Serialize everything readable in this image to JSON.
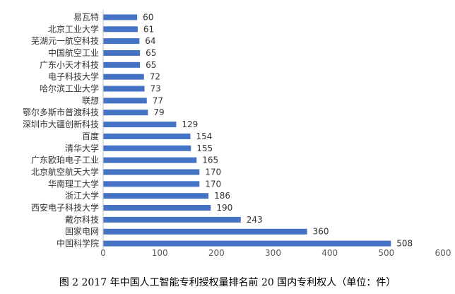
{
  "caption": "图 2 2017 年中国人工智能专利授权量排名前 20 国内专利权人（单位：件）",
  "chart_data": {
    "type": "bar",
    "orientation": "horizontal",
    "categories": [
      "易瓦特",
      "北京工业大学",
      "芜湖元一航空科技",
      "中国航空工业",
      "广东小天才科技",
      "电子科技大学",
      "哈尔滨工业大学",
      "联想",
      "鄂尔多斯市普渡科技",
      "深圳市大疆创新科技",
      "百度",
      "清华大学",
      "广东欧珀电子工业",
      "北京航空航天大学",
      "华南理工大学",
      "浙江大学",
      "西安电子科技大学",
      "戴尔科技",
      "国家电网",
      "中国科学院"
    ],
    "values": [
      60,
      61,
      64,
      65,
      65,
      72,
      73,
      77,
      79,
      129,
      154,
      155,
      165,
      170,
      170,
      186,
      190,
      243,
      360,
      508
    ],
    "xlim": [
      0,
      600
    ],
    "xticks": [
      0,
      100,
      200,
      300,
      400,
      500,
      600
    ],
    "grid": false,
    "bar_color": "#4472C4"
  }
}
